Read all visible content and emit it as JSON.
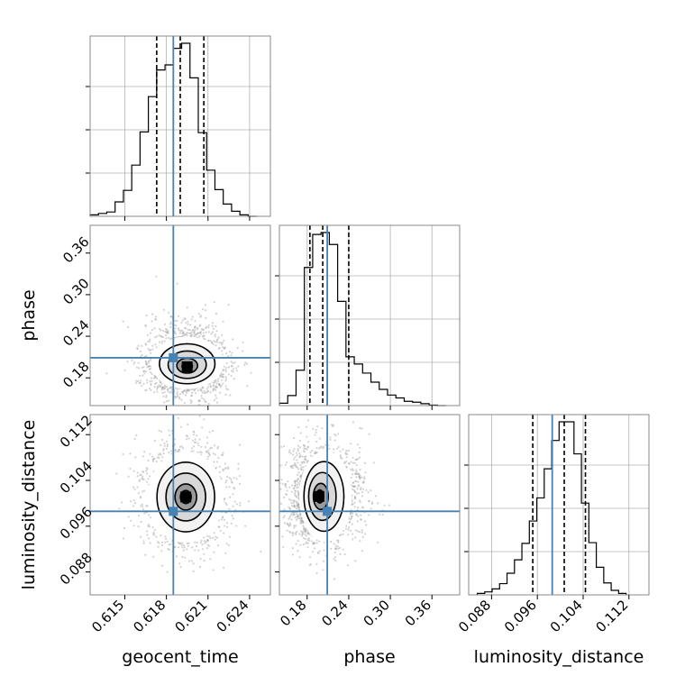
{
  "chart_data": {
    "type": "corner",
    "parameters": [
      {
        "name": "geocent_time",
        "label": "geocent_time",
        "range": [
          0.6125,
          0.6255
        ],
        "ticks": [
          "0.615",
          "0.618",
          "0.621",
          "0.624"
        ],
        "tick_values": [
          0.615,
          0.618,
          0.621,
          0.624
        ],
        "truth": 0.6185,
        "quantiles": [
          0.6173,
          0.619,
          0.6207
        ]
      },
      {
        "name": "phase",
        "label": "phase",
        "range": [
          0.14,
          0.4
        ],
        "ticks": [
          "0.18",
          "0.24",
          "0.30",
          "0.36"
        ],
        "tick_values": [
          0.18,
          0.24,
          0.3,
          0.36
        ],
        "truth": 0.209,
        "quantiles": [
          0.184,
          0.2025,
          0.24
        ]
      },
      {
        "name": "luminosity_distance",
        "label": "luminosity_distance",
        "range": [
          0.084,
          0.1155
        ],
        "ticks": [
          "0.088",
          "0.096",
          "0.104",
          "0.112"
        ],
        "tick_values": [
          0.088,
          0.096,
          0.104,
          0.112
        ],
        "truth": 0.0986,
        "quantiles": [
          0.0952,
          0.1007,
          0.1044
        ]
      }
    ],
    "histograms": {
      "geocent_time": {
        "bin_edges": [
          0.6125,
          0.6131,
          0.6137,
          0.6143,
          0.6149,
          0.6155,
          0.6161,
          0.6167,
          0.6173,
          0.6179,
          0.6185,
          0.6191,
          0.6197,
          0.6203,
          0.6209,
          0.6215,
          0.6221,
          0.6227,
          0.6233,
          0.6239,
          0.6245
        ],
        "counts": [
          2,
          4,
          6,
          20,
          36,
          71,
          117,
          166,
          203,
          210,
          233,
          240,
          192,
          116,
          64,
          37,
          17,
          7,
          2,
          0
        ]
      },
      "phase": {
        "bin_edges": [
          0.14,
          0.152,
          0.164,
          0.176,
          0.188,
          0.2,
          0.212,
          0.224,
          0.236,
          0.248,
          0.26,
          0.272,
          0.284,
          0.296,
          0.308,
          0.32,
          0.332,
          0.344,
          0.356,
          0.368,
          0.38
        ],
        "counts": [
          5,
          21,
          74,
          289,
          358,
          362,
          337,
          218,
          102,
          87,
          68,
          49,
          34,
          22,
          16,
          9,
          7,
          4,
          1,
          0
        ]
      },
      "luminosity_distance": {
        "bin_edges": [
          0.0855,
          0.0868,
          0.0881,
          0.0894,
          0.0907,
          0.092,
          0.0933,
          0.0946,
          0.0959,
          0.0972,
          0.0985,
          0.0998,
          0.1011,
          0.1024,
          0.1037,
          0.105,
          0.1063,
          0.1076,
          0.1089,
          0.1102,
          0.1115
        ],
        "counts": [
          2,
          4,
          8,
          15,
          29,
          47,
          69,
          99,
          130,
          169,
          207,
          232,
          232,
          189,
          123,
          70,
          37,
          16,
          6,
          2
        ]
      }
    },
    "joint": {
      "phase_vs_geocent_time": {
        "center": [
          0.6195,
          0.196
        ],
        "sigma": [
          0.00125,
          0.018
        ]
      },
      "luminosity_distance_vs_geocent_time": {
        "center": [
          0.6194,
          0.1011
        ],
        "sigma": [
          0.0013,
          0.0038
        ]
      },
      "luminosity_distance_vs_phase": {
        "center": [
          0.197,
          0.1012
        ],
        "sigma": [
          0.018,
          0.0038
        ]
      }
    },
    "grid": true,
    "colors": {
      "truth": "#4682b4",
      "hist": "#000000",
      "quantile": "#000000",
      "grid": "#b0b0b0",
      "frame": "#888888",
      "scatter": "#9e9e9e"
    }
  }
}
